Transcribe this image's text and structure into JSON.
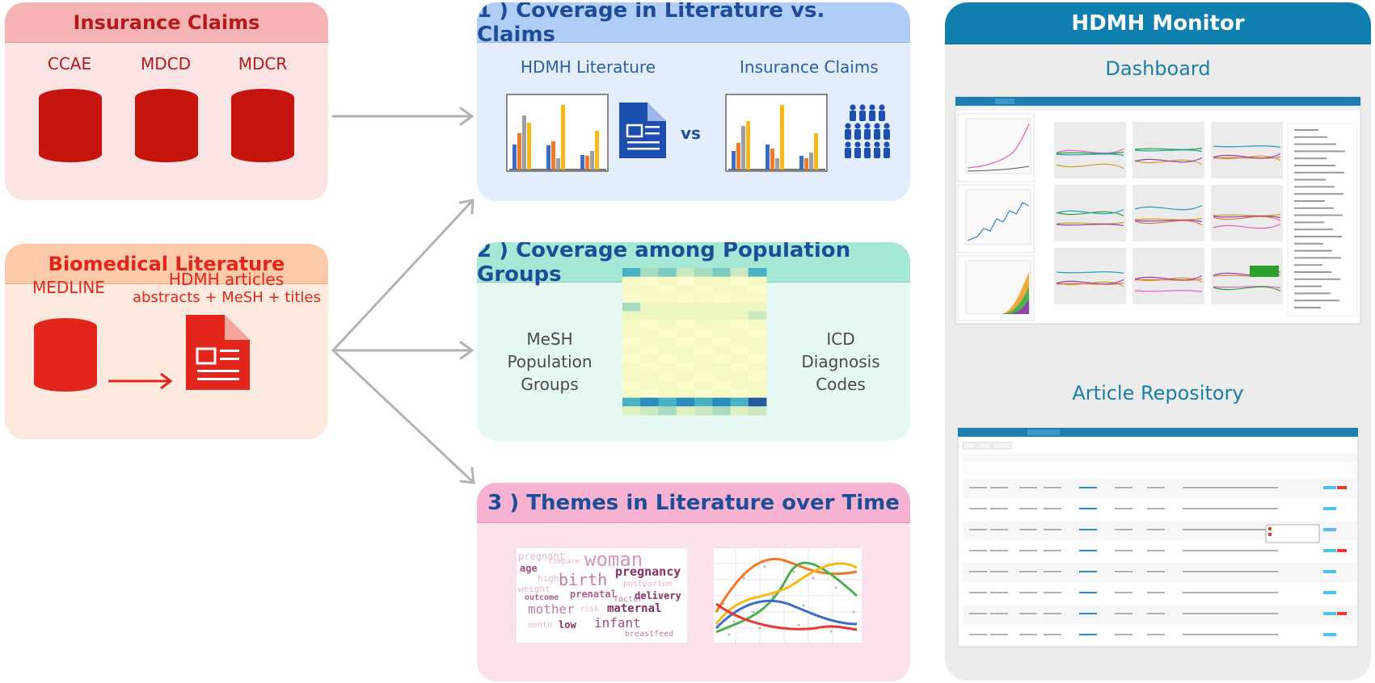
{
  "claims": {
    "title": "Insurance Claims",
    "databases": [
      "CCAE",
      "MDCD",
      "MDCR"
    ]
  },
  "biolit": {
    "title": "Biomedical Literature",
    "medline": "MEDLINE",
    "articles_line1": "HDMH articles",
    "articles_line2": "abstracts + MeSH + titles"
  },
  "coverage": {
    "title": "1 ) Coverage in Literature vs. Claims",
    "left_label": "HDMH Literature",
    "right_label": "Insurance Claims",
    "vs": "vs"
  },
  "population": {
    "title": "2 ) Coverage among Population Groups",
    "left_line1": "MeSH",
    "left_line2": "Population",
    "left_line3": "Groups",
    "right_line1": "ICD",
    "right_line2": "Diagnosis",
    "right_line3": "Codes"
  },
  "themes": {
    "title": "3 ) Themes in Literature over Time",
    "words": {
      "pregnant": "pregnant",
      "compare": "compare",
      "woman": "woman",
      "age": "age",
      "pregnancy": "pregnancy",
      "high": "high",
      "birth": "birth",
      "postpartum": "postpartum",
      "weight": "weight",
      "prenatal": "prenatal",
      "outcome": "outcome",
      "factor": "factor",
      "delivery": "delivery",
      "mother": "mother",
      "risk": "risk",
      "maternal": "maternal",
      "month": "month",
      "low": "low",
      "infant": "infant",
      "breastfeed": "breastfeed"
    }
  },
  "monitor": {
    "title": "HDMH Monitor",
    "dashboard_label": "Dashboard",
    "repository_label": "Article Repository"
  },
  "colors": {
    "claims_red": "#b51a1a",
    "literature_red": "#e2261b",
    "navy": "#1d4d99",
    "teal": "#0e7fae"
  }
}
